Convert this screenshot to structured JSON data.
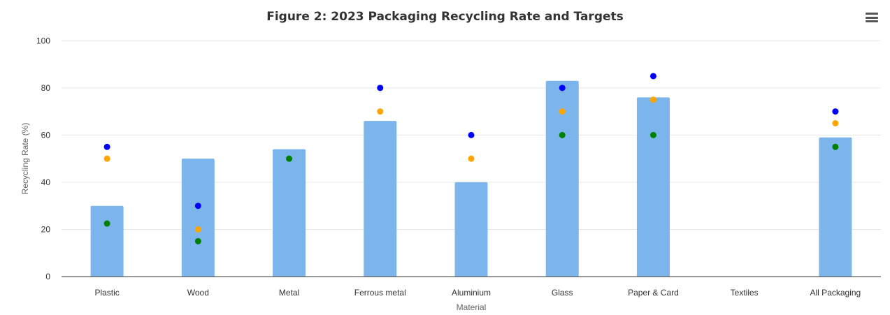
{
  "chart_data": {
    "type": "bar",
    "title": "Figure 2: 2023 Packaging Recycling Rate and Targets",
    "xlabel": "Material",
    "ylabel": "Recycling Rate (%)",
    "ylim": [
      0,
      100
    ],
    "yticks": [
      0,
      20,
      40,
      60,
      80,
      100
    ],
    "grid": true,
    "legend": "none",
    "categories": [
      "Plastic",
      "Wood",
      "Metal",
      "Ferrous metal",
      "Aluminium",
      "Glass",
      "Paper & Card",
      "Textiles",
      "All Packaging"
    ],
    "values": [
      30,
      50,
      54,
      66,
      40,
      83,
      76,
      null,
      59
    ],
    "bar_color": "#7cb5ec",
    "markers": [
      {
        "color": "#0000ff",
        "type": "scatter",
        "values": [
          55,
          30,
          null,
          80,
          60,
          80,
          85,
          null,
          70
        ]
      },
      {
        "color": "#ffa500",
        "type": "scatter",
        "values": [
          50,
          20,
          null,
          70,
          50,
          70,
          75,
          null,
          65
        ]
      },
      {
        "color": "#008000",
        "type": "scatter",
        "values": [
          22.5,
          15,
          50,
          null,
          null,
          60,
          60,
          null,
          55
        ]
      }
    ]
  },
  "menu_icon": "hamburger-menu-icon"
}
